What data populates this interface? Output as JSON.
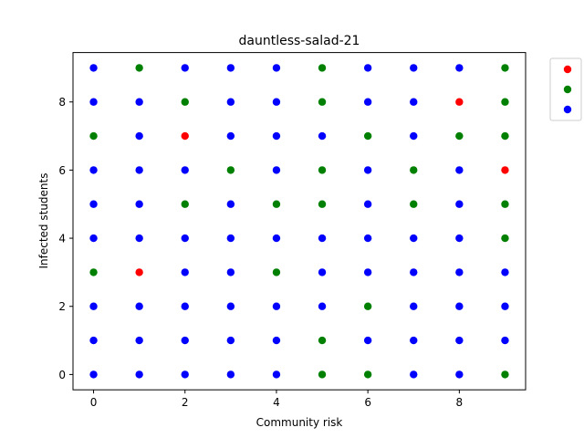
{
  "chart_data": {
    "type": "scatter",
    "title": "dauntless-salad-21",
    "xlabel": "Community risk",
    "ylabel": "Infected students",
    "xlim": [
      -0.45,
      9.45
    ],
    "ylim": [
      -0.45,
      9.45
    ],
    "xticks": [
      0,
      2,
      4,
      6,
      8
    ],
    "yticks": [
      0,
      2,
      4,
      6,
      8
    ],
    "grid": false,
    "legend": {
      "placement": "outside-upper-right",
      "labels": [
        "",
        "",
        ""
      ]
    },
    "colors": {
      "red": "#ff0000",
      "green": "#008000",
      "blue": "#0000ff"
    },
    "series": [
      {
        "color": "#ff0000",
        "points": [
          [
            1,
            3
          ],
          [
            2,
            7
          ],
          [
            8,
            8
          ],
          [
            9,
            6
          ]
        ]
      },
      {
        "color": "#008000",
        "points": [
          [
            0,
            3
          ],
          [
            0,
            7
          ],
          [
            1,
            9
          ],
          [
            2,
            5
          ],
          [
            2,
            8
          ],
          [
            3,
            6
          ],
          [
            4,
            3
          ],
          [
            4,
            5
          ],
          [
            5,
            0
          ],
          [
            5,
            1
          ],
          [
            5,
            5
          ],
          [
            5,
            6
          ],
          [
            5,
            8
          ],
          [
            5,
            9
          ],
          [
            6,
            0
          ],
          [
            6,
            2
          ],
          [
            6,
            7
          ],
          [
            7,
            5
          ],
          [
            7,
            6
          ],
          [
            8,
            7
          ],
          [
            9,
            0
          ],
          [
            9,
            4
          ],
          [
            9,
            5
          ],
          [
            9,
            7
          ],
          [
            9,
            8
          ],
          [
            9,
            9
          ]
        ]
      },
      {
        "color": "#0000ff",
        "points": [
          [
            0,
            0
          ],
          [
            0,
            1
          ],
          [
            0,
            2
          ],
          [
            0,
            4
          ],
          [
            0,
            5
          ],
          [
            0,
            6
          ],
          [
            0,
            8
          ],
          [
            0,
            9
          ],
          [
            1,
            0
          ],
          [
            1,
            1
          ],
          [
            1,
            2
          ],
          [
            1,
            4
          ],
          [
            1,
            5
          ],
          [
            1,
            6
          ],
          [
            1,
            7
          ],
          [
            1,
            8
          ],
          [
            2,
            0
          ],
          [
            2,
            1
          ],
          [
            2,
            2
          ],
          [
            2,
            3
          ],
          [
            2,
            4
          ],
          [
            2,
            6
          ],
          [
            2,
            9
          ],
          [
            3,
            0
          ],
          [
            3,
            1
          ],
          [
            3,
            2
          ],
          [
            3,
            3
          ],
          [
            3,
            4
          ],
          [
            3,
            5
          ],
          [
            3,
            7
          ],
          [
            3,
            8
          ],
          [
            3,
            9
          ],
          [
            4,
            0
          ],
          [
            4,
            1
          ],
          [
            4,
            2
          ],
          [
            4,
            4
          ],
          [
            4,
            6
          ],
          [
            4,
            7
          ],
          [
            4,
            8
          ],
          [
            4,
            9
          ],
          [
            5,
            2
          ],
          [
            5,
            3
          ],
          [
            5,
            4
          ],
          [
            5,
            7
          ],
          [
            6,
            1
          ],
          [
            6,
            3
          ],
          [
            6,
            4
          ],
          [
            6,
            5
          ],
          [
            6,
            6
          ],
          [
            6,
            8
          ],
          [
            6,
            9
          ],
          [
            7,
            0
          ],
          [
            7,
            1
          ],
          [
            7,
            2
          ],
          [
            7,
            3
          ],
          [
            7,
            4
          ],
          [
            7,
            7
          ],
          [
            7,
            8
          ],
          [
            7,
            9
          ],
          [
            8,
            0
          ],
          [
            8,
            1
          ],
          [
            8,
            2
          ],
          [
            8,
            3
          ],
          [
            8,
            4
          ],
          [
            8,
            5
          ],
          [
            8,
            6
          ],
          [
            8,
            9
          ],
          [
            9,
            1
          ],
          [
            9,
            2
          ],
          [
            9,
            3
          ]
        ]
      }
    ]
  }
}
